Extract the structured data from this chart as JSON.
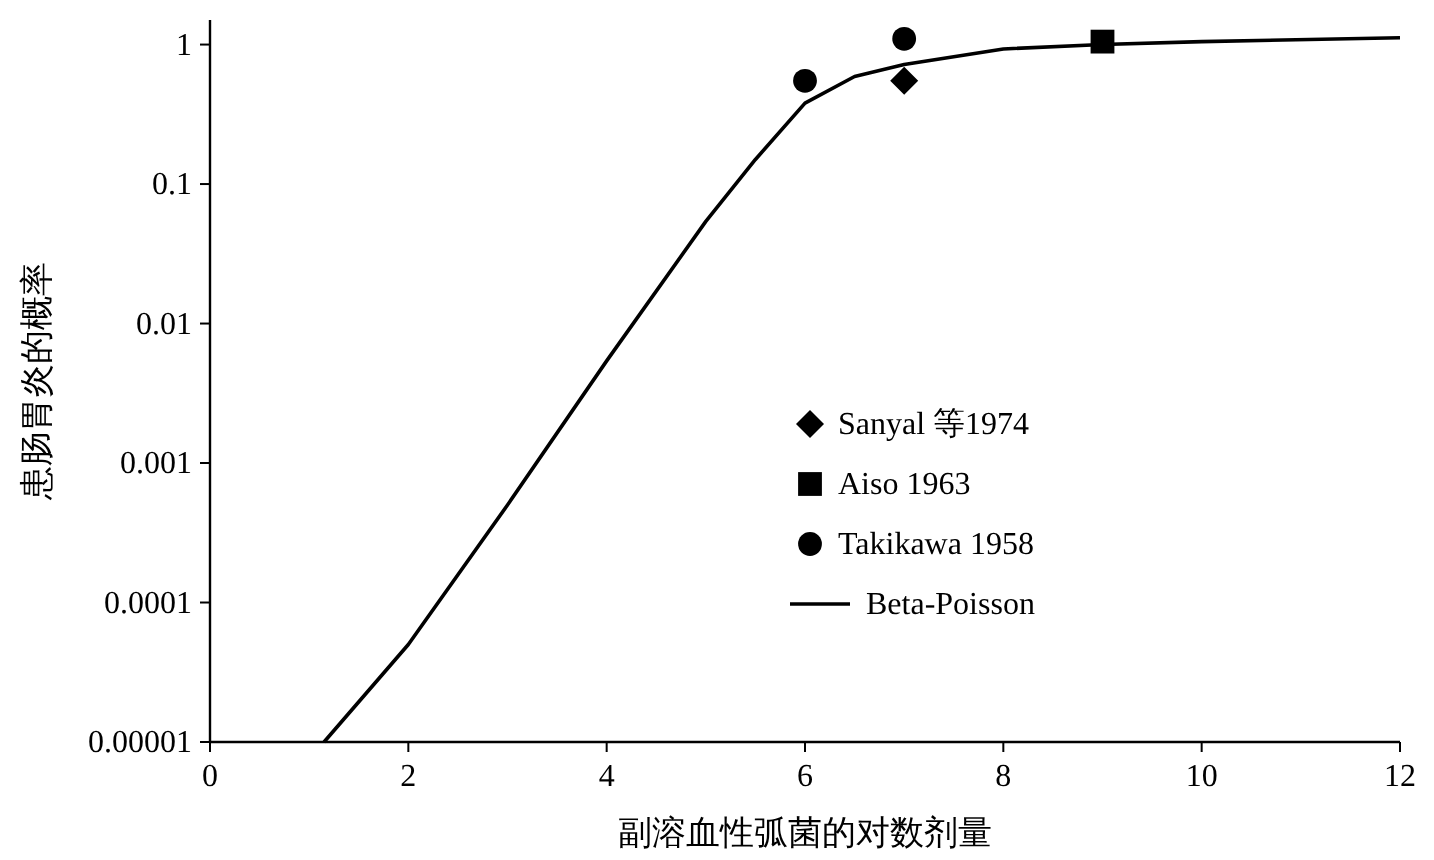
{
  "chart_data": {
    "type": "line",
    "xlabel": "副溶血性弧菌的对数剂量",
    "ylabel": "患肠胃炎的概率",
    "log": "y",
    "xlim": [
      0,
      12
    ],
    "xticks": [
      0,
      2,
      4,
      6,
      8,
      10,
      12
    ],
    "ylim": [
      1e-05,
      1.5
    ],
    "yticks": [
      {
        "value": 1e-05,
        "label": "0.00001"
      },
      {
        "value": 0.0001,
        "label": "0.0001"
      },
      {
        "value": 0.001,
        "label": "0.001"
      },
      {
        "value": 0.01,
        "label": "0.01"
      },
      {
        "value": 0.1,
        "label": "0.1"
      },
      {
        "value": 1,
        "label": "1"
      }
    ],
    "legend": "center",
    "grid": false,
    "series": [
      {
        "name": "Sanyal 等1974",
        "type": "scatter",
        "marker": "diamond",
        "color": "#000000",
        "x": [
          7
        ],
        "values": [
          0.55
        ]
      },
      {
        "name": "Aiso 1963",
        "type": "scatter",
        "marker": "square",
        "color": "#000000",
        "x": [
          9
        ],
        "values": [
          1.05
        ]
      },
      {
        "name": "Takikawa 1958",
        "type": "scatter",
        "marker": "circle",
        "color": "#000000",
        "x": [
          6,
          7
        ],
        "values": [
          0.55,
          1.1
        ]
      },
      {
        "name": "Beta-Poisson",
        "marker": "none",
        "line_style": "solid",
        "color": "#000000",
        "x": [
          1.15,
          2,
          3,
          4,
          5,
          5.5,
          6,
          6.5,
          7,
          8,
          9,
          10,
          12
        ],
        "values": [
          1e-05,
          5e-05,
          0.0005,
          0.0054,
          0.054,
          0.15,
          0.38,
          0.59,
          0.72,
          0.93,
          1.0,
          1.05,
          1.12
        ]
      }
    ]
  }
}
